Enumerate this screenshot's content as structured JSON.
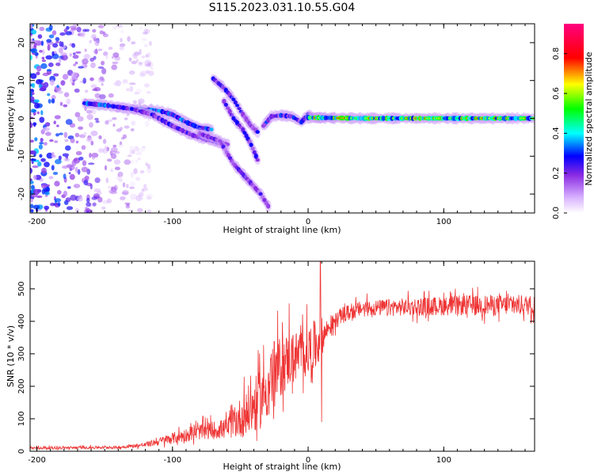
{
  "title": "S115.2023.031.10.55.G04",
  "chart_data": [
    {
      "type": "heatmap",
      "xlabel": "Height of straight line (km)",
      "ylabel": "Frequency (Hz)",
      "xlim": [
        -205,
        167
      ],
      "ylim": [
        -25,
        25
      ],
      "xticks": [
        -200,
        -100,
        0,
        100
      ],
      "yticks": [
        -20,
        -10,
        0,
        10,
        20
      ],
      "grid": false,
      "colorbar": {
        "label": "Normalized spectral amplitude",
        "range": [
          0,
          0.95
        ],
        "ticks": [
          0.0,
          0.2,
          0.4,
          0.6,
          0.8
        ],
        "colormap": [
          "#ffffff",
          "#8a2be2",
          "#0000ff",
          "#00ffff",
          "#00ff00",
          "#ffff00",
          "#ff0000",
          "#ff0080"
        ]
      },
      "noise_region_x": [
        -205,
        -115
      ],
      "ridges": [
        {
          "amp": 0.45,
          "points": [
            [
              -165,
              4
            ],
            [
              -150,
              3.5
            ],
            [
              -130,
              2.5
            ],
            [
              -110,
              2
            ],
            [
              -100,
              1
            ],
            [
              -90,
              -1
            ],
            [
              -80,
              -2.5
            ],
            [
              -70,
              -3
            ]
          ]
        },
        {
          "amp": 0.35,
          "points": [
            [
              -130,
              2.5
            ],
            [
              -115,
              1
            ],
            [
              -100,
              -2
            ],
            [
              -85,
              -4.5
            ],
            [
              -70,
              -6
            ],
            [
              -58,
              -7
            ]
          ]
        },
        {
          "amp": 0.35,
          "points": [
            [
              -70,
              10.5
            ],
            [
              -62,
              8
            ],
            [
              -55,
              5
            ],
            [
              -48,
              1
            ],
            [
              -42,
              -2
            ],
            [
              -36,
              -4
            ]
          ]
        },
        {
          "amp": 0.35,
          "points": [
            [
              -62,
              4.5
            ],
            [
              -55,
              0
            ],
            [
              -48,
              -3
            ],
            [
              -42,
              -7
            ],
            [
              -36,
              -12
            ]
          ]
        },
        {
          "amp": 0.3,
          "points": [
            [
              -80,
              -4
            ],
            [
              -65,
              -6
            ],
            [
              -55,
              -12
            ],
            [
              -45,
              -16
            ],
            [
              -35,
              -20
            ],
            [
              -28,
              -24
            ]
          ]
        },
        {
          "amp": 0.4,
          "points": [
            [
              -33,
              -2
            ],
            [
              -27,
              0.5
            ],
            [
              -20,
              0.8
            ],
            [
              -12,
              0.5
            ],
            [
              -5,
              -1
            ],
            [
              0,
              1
            ],
            [
              5,
              0.2
            ],
            [
              20,
              0.1
            ]
          ]
        },
        {
          "amp": 0.7,
          "points": [
            [
              0,
              0.2
            ],
            [
              40,
              0
            ],
            [
              80,
              0
            ],
            [
              120,
              0
            ],
            [
              167,
              0
            ]
          ]
        }
      ]
    },
    {
      "type": "line",
      "xlabel": "Height of straight line (km)",
      "ylabel": "SNR (10 * v/v)",
      "xlim": [
        -205,
        167
      ],
      "ylim": [
        0,
        585
      ],
      "xticks": [
        -200,
        -100,
        0,
        100
      ],
      "yticks": [
        0,
        100,
        200,
        300,
        400,
        500
      ],
      "grid": false,
      "series_color": "#ee3333",
      "envelope": [
        {
          "x": -205,
          "mean": 10,
          "spread": 6
        },
        {
          "x": -140,
          "mean": 12,
          "spread": 6
        },
        {
          "x": -120,
          "mean": 20,
          "spread": 10
        },
        {
          "x": -100,
          "mean": 40,
          "spread": 25
        },
        {
          "x": -80,
          "mean": 60,
          "spread": 35
        },
        {
          "x": -60,
          "mean": 70,
          "spread": 45
        },
        {
          "x": -45,
          "mean": 120,
          "spread": 110
        },
        {
          "x": -35,
          "mean": 160,
          "spread": 130
        },
        {
          "x": -25,
          "mean": 240,
          "spread": 150
        },
        {
          "x": -15,
          "mean": 280,
          "spread": 120
        },
        {
          "x": -5,
          "mean": 300,
          "spread": 110
        },
        {
          "x": 5,
          "mean": 320,
          "spread": 120
        },
        {
          "x": 15,
          "mean": 380,
          "spread": 40
        },
        {
          "x": 25,
          "mean": 420,
          "spread": 35
        },
        {
          "x": 40,
          "mean": 440,
          "spread": 35
        },
        {
          "x": 80,
          "mean": 445,
          "spread": 40
        },
        {
          "x": 120,
          "mean": 450,
          "spread": 45
        },
        {
          "x": 167,
          "mean": 450,
          "spread": 45
        }
      ],
      "peaks": [
        {
          "x": 9,
          "y": 585
        },
        {
          "x": 10,
          "y": 90
        },
        {
          "x": -14,
          "y": 455
        }
      ]
    }
  ]
}
